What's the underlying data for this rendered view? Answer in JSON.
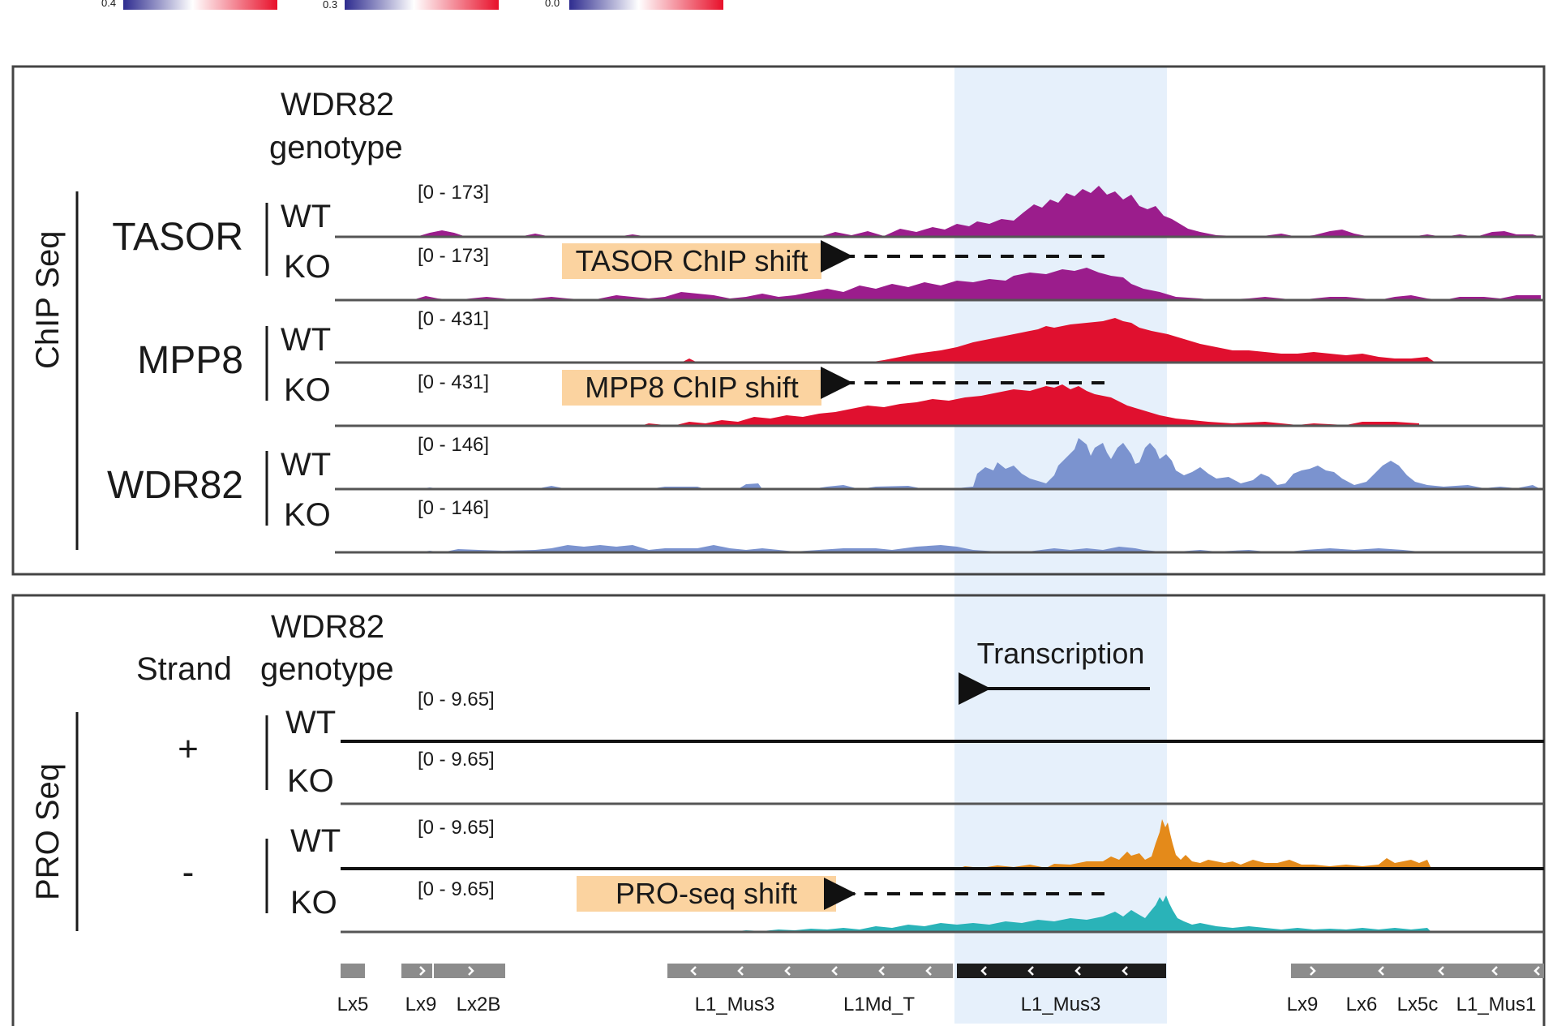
{
  "colors": {
    "tasor": "#9b1d8c",
    "mpp8": "#e0102f",
    "wdr82": "#7b93cf",
    "pro_wt": "#e48a1a",
    "pro_ko": "#2ab3b8",
    "highlight": "#e6f0fb",
    "shift_box": "#fbd3a0",
    "panel_border": "#444444",
    "te_gray": "#8c8c8c",
    "te_black": "#1c1c1c"
  },
  "legend_ticks": [
    "0.4",
    "0.3",
    "0.0"
  ],
  "chip": {
    "assay": "ChIP Seq",
    "genotype_header": [
      "WDR82",
      "genotype"
    ],
    "groups": [
      {
        "name": "TASOR",
        "color_key": "tasor"
      },
      {
        "name": "MPP8",
        "color_key": "mpp8"
      },
      {
        "name": "WDR82",
        "color_key": "wdr82"
      }
    ],
    "tracks": [
      {
        "protein": "TASOR",
        "genotype": "WT",
        "range": "[0 - 173]"
      },
      {
        "protein": "TASOR",
        "genotype": "KO",
        "range": "[0 - 173]"
      },
      {
        "protein": "MPP8",
        "genotype": "WT",
        "range": "[0 - 431]"
      },
      {
        "protein": "MPP8",
        "genotype": "KO",
        "range": "[0 - 431]"
      },
      {
        "protein": "WDR82",
        "genotype": "WT",
        "range": "[0 - 146]"
      },
      {
        "protein": "WDR82",
        "genotype": "KO",
        "range": "[0 - 146]"
      }
    ],
    "shifts": [
      "TASOR ChIP shift",
      "MPP8 ChIP shift"
    ]
  },
  "pro": {
    "assay": "PRO Seq",
    "strand_header": "Strand",
    "genotype_header": [
      "WDR82",
      "genotype"
    ],
    "strands": [
      "+",
      "-"
    ],
    "tracks": [
      {
        "strand": "+",
        "genotype": "WT",
        "range": "[0 - 9.65]"
      },
      {
        "strand": "+",
        "genotype": "KO",
        "range": "[0 - 9.65]"
      },
      {
        "strand": "-",
        "genotype": "WT",
        "range": "[0 - 9.65]"
      },
      {
        "strand": "-",
        "genotype": "KO",
        "range": "[0 - 9.65]"
      }
    ],
    "transcription_label": "Transcription",
    "shift": "PRO-seq shift"
  },
  "annotations": [
    "Lx5",
    "Lx9",
    "Lx2B",
    "L1_Mus3",
    "L1Md_T",
    "L1_Mus3",
    "Lx9",
    "Lx6",
    "Lx5c",
    "L1_Mus1"
  ]
}
